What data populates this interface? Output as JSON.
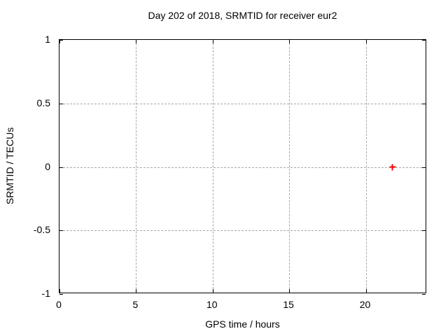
{
  "chart_data": {
    "type": "scatter",
    "title": "Day 202 of 2018, SRMTID for receiver eur2",
    "xlabel": "GPS time / hours",
    "ylabel": "SRMTID / TECUs",
    "xlim": [
      0,
      24
    ],
    "ylim": [
      -1,
      1
    ],
    "xticks": [
      0,
      5,
      10,
      15,
      20
    ],
    "xtick_labels": [
      "0",
      "5",
      "10",
      "15",
      "20"
    ],
    "yticks": [
      -1,
      -0.5,
      0,
      0.5,
      1
    ],
    "ytick_labels": [
      "-1",
      "-0.5",
      "0",
      "0.5",
      "1"
    ],
    "grid": true,
    "grid_style": "dashed",
    "legend": "none",
    "series": [
      {
        "name": "SRMTID",
        "marker": "plus",
        "color": "#ff0000",
        "points": [
          {
            "x": 21.75,
            "y": 0.0
          }
        ]
      }
    ],
    "colors": {
      "background": "#ffffff",
      "border": "#000000",
      "grid": "#a8a8a8",
      "text": "#000000",
      "marker": "#ff0000"
    }
  }
}
